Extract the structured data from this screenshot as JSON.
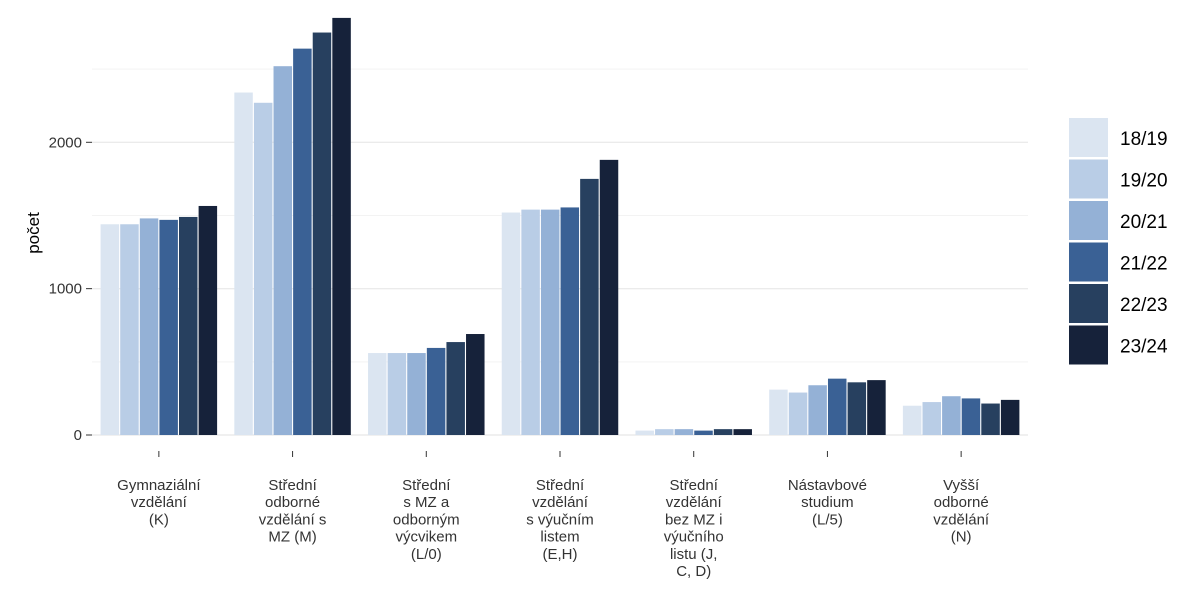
{
  "chart_data": {
    "type": "bar",
    "title": "",
    "xlabel": "",
    "ylabel": "počet",
    "ylim": [
      0,
      2830
    ],
    "yticks": [
      0,
      1000,
      2000
    ],
    "grid": true,
    "legend_position": "right",
    "categories": [
      [
        "Gymnaziální",
        "vzdělání",
        "(K)"
      ],
      [
        "Střední",
        "odborné",
        "vzdělání s",
        "MZ (M)"
      ],
      [
        "Střední",
        "s MZ a",
        "odborným",
        "výcvikem",
        "(L/0)"
      ],
      [
        "Střední",
        "vzdělání",
        "s výučním",
        "listem",
        "(E,H)"
      ],
      [
        "Střední",
        "vzdělání",
        "bez MZ i",
        "výučního",
        "listu (J,",
        "C, D)"
      ],
      [
        "Nástavbové",
        "studium",
        "(L/5)"
      ],
      [
        "Vyšší",
        "odborné",
        "vzdělání",
        "(N)"
      ]
    ],
    "series": [
      {
        "name": "18/19",
        "color": "#dbe5f1",
        "values": [
          1440,
          2340,
          560,
          1520,
          30,
          310,
          200
        ]
      },
      {
        "name": "19/20",
        "color": "#b9cde6",
        "values": [
          1440,
          2270,
          560,
          1540,
          40,
          290,
          225
        ]
      },
      {
        "name": "20/21",
        "color": "#94b1d6",
        "values": [
          1480,
          2520,
          560,
          1540,
          40,
          340,
          265
        ]
      },
      {
        "name": "21/22",
        "color": "#3a6195",
        "values": [
          1470,
          2640,
          595,
          1555,
          30,
          385,
          250
        ]
      },
      {
        "name": "22/23",
        "color": "#27405f",
        "values": [
          1490,
          2750,
          635,
          1750,
          40,
          360,
          215
        ]
      },
      {
        "name": "23/24",
        "color": "#16223a",
        "values": [
          1565,
          2850,
          690,
          1880,
          40,
          375,
          240
        ]
      }
    ]
  }
}
